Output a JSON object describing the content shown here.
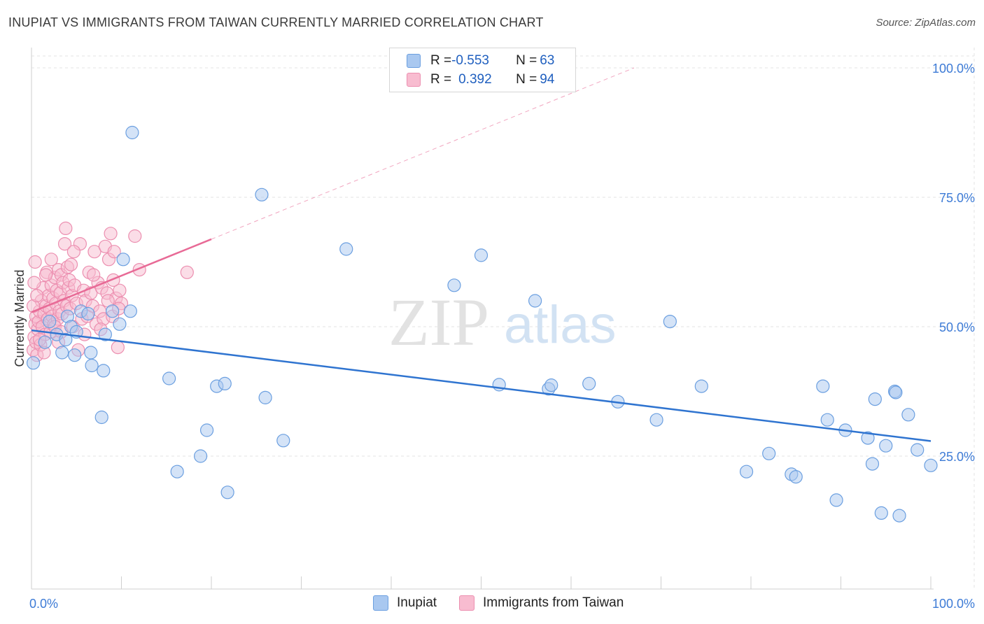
{
  "title": "INUPIAT VS IMMIGRANTS FROM TAIWAN CURRENTLY MARRIED CORRELATION CHART",
  "source": "Source: ZipAtlas.com",
  "watermark": {
    "zip": "ZIP",
    "atlas": "atlas"
  },
  "legend": {
    "rows": [
      {
        "r_label": "R = ",
        "r_value": "-0.553",
        "n_label": "N = ",
        "n_value": "63",
        "color": "#a9c8f0",
        "stroke": "#6c9fe0"
      },
      {
        "r_label": "R = ",
        "r_value": "0.392",
        "n_label": "N = ",
        "n_value": "94",
        "color": "#f8bcd0",
        "stroke": "#ec8fb0"
      }
    ]
  },
  "bottom_legend": [
    "Inupiat",
    "Immigrants from Taiwan"
  ],
  "colors": {
    "blue": "#a9c8f0",
    "blue_stroke": "#6b9fe0",
    "blue_line": "#2f74d0",
    "pink": "#f8bcd0",
    "pink_stroke": "#ec8fb0",
    "pink_line": "#e86a96",
    "axis_text": "#3d7bd6",
    "grid": "#e3e3e3"
  },
  "chart_data": {
    "type": "scatter",
    "title": "INUPIAT VS IMMIGRANTS FROM TAIWAN CURRENTLY MARRIED CORRELATION CHART",
    "xlabel": "",
    "ylabel": "Currently Married",
    "xlim": [
      0,
      100
    ],
    "ylim": [
      0,
      104
    ],
    "x_tick_labels": [
      "0.0%",
      "100.0%"
    ],
    "y_ticks": [
      25,
      50,
      75,
      100
    ],
    "y_tick_labels": [
      "25.0%",
      "50.0%",
      "75.0%",
      "100.0%"
    ],
    "grid": true,
    "series": [
      {
        "name": "Inupiat",
        "points": [
          [
            0.2,
            43.0
          ],
          [
            2.8,
            48.5
          ],
          [
            3.4,
            45.0
          ],
          [
            4.0,
            52.0
          ],
          [
            4.4,
            50.0
          ],
          [
            4.8,
            44.5
          ],
          [
            5.5,
            53.0
          ],
          [
            6.3,
            52.5
          ],
          [
            6.6,
            45.0
          ],
          [
            6.7,
            42.5
          ],
          [
            7.8,
            32.5
          ],
          [
            8.0,
            41.5
          ],
          [
            8.2,
            48.5
          ],
          [
            9.0,
            53.0
          ],
          [
            9.8,
            50.5
          ],
          [
            10.2,
            63.0
          ],
          [
            11.0,
            53.0
          ],
          [
            11.2,
            87.5
          ],
          [
            15.3,
            40.0
          ],
          [
            16.2,
            22.0
          ],
          [
            18.8,
            25.0
          ],
          [
            19.5,
            30.0
          ],
          [
            20.6,
            38.5
          ],
          [
            21.5,
            39.0
          ],
          [
            21.8,
            18.0
          ],
          [
            25.6,
            75.5
          ],
          [
            26.0,
            36.3
          ],
          [
            28.0,
            28.0
          ],
          [
            35.0,
            65.0
          ],
          [
            47.0,
            58.0
          ],
          [
            50.0,
            63.8
          ],
          [
            52.0,
            38.8
          ],
          [
            56.0,
            55.0
          ],
          [
            57.5,
            38.0
          ],
          [
            57.8,
            38.7
          ],
          [
            62.0,
            39.0
          ],
          [
            65.2,
            35.5
          ],
          [
            69.5,
            32.0
          ],
          [
            71.0,
            51.0
          ],
          [
            74.5,
            38.5
          ],
          [
            79.5,
            22.0
          ],
          [
            82.0,
            25.5
          ],
          [
            84.5,
            21.5
          ],
          [
            85.0,
            21.0
          ],
          [
            88.0,
            38.5
          ],
          [
            88.5,
            32.0
          ],
          [
            89.5,
            16.5
          ],
          [
            90.5,
            30.0
          ],
          [
            93.0,
            28.5
          ],
          [
            93.5,
            23.5
          ],
          [
            93.8,
            36.0
          ],
          [
            94.5,
            14.0
          ],
          [
            95.0,
            27.0
          ],
          [
            96.0,
            37.5
          ],
          [
            96.1,
            37.3
          ],
          [
            96.5,
            13.5
          ],
          [
            97.5,
            33.0
          ],
          [
            98.5,
            26.2
          ],
          [
            100.0,
            23.2
          ],
          [
            1.5,
            47.0
          ],
          [
            5.0,
            49.0
          ],
          [
            2.0,
            51.0
          ],
          [
            3.8,
            47.5
          ]
        ],
        "trend": {
          "x": [
            0,
            100
          ],
          "y": [
            49.3,
            27.9
          ]
        }
      },
      {
        "name": "Immigrants from Taiwan",
        "points": [
          [
            0.2,
            45.5
          ],
          [
            0.3,
            48.0
          ],
          [
            0.4,
            50.5
          ],
          [
            0.5,
            47.0
          ],
          [
            0.5,
            52.0
          ],
          [
            0.6,
            44.5
          ],
          [
            0.7,
            49.5
          ],
          [
            0.8,
            51.0
          ],
          [
            0.9,
            53.0
          ],
          [
            1.0,
            46.5
          ],
          [
            1.1,
            55.0
          ],
          [
            1.2,
            50.0
          ],
          [
            1.3,
            57.5
          ],
          [
            1.4,
            52.5
          ],
          [
            1.5,
            48.5
          ],
          [
            1.6,
            54.0
          ],
          [
            1.7,
            60.5
          ],
          [
            1.8,
            51.5
          ],
          [
            1.9,
            56.0
          ],
          [
            2.0,
            53.5
          ],
          [
            2.1,
            49.0
          ],
          [
            2.2,
            58.0
          ],
          [
            2.3,
            52.0
          ],
          [
            2.4,
            55.5
          ],
          [
            2.5,
            50.5
          ],
          [
            2.6,
            59.5
          ],
          [
            2.7,
            54.5
          ],
          [
            2.8,
            57.0
          ],
          [
            2.9,
            51.5
          ],
          [
            3.0,
            61.0
          ],
          [
            3.1,
            53.0
          ],
          [
            3.2,
            56.5
          ],
          [
            3.3,
            60.0
          ],
          [
            3.4,
            52.5
          ],
          [
            3.5,
            58.5
          ],
          [
            3.6,
            55.0
          ],
          [
            3.7,
            66.0
          ],
          [
            3.8,
            69.0
          ],
          [
            3.9,
            54.0
          ],
          [
            4.0,
            61.5
          ],
          [
            4.1,
            57.5
          ],
          [
            4.2,
            59.0
          ],
          [
            4.3,
            53.5
          ],
          [
            4.4,
            62.0
          ],
          [
            4.5,
            56.0
          ],
          [
            4.6,
            50.0
          ],
          [
            4.8,
            58.0
          ],
          [
            5.0,
            54.5
          ],
          [
            5.2,
            45.5
          ],
          [
            5.4,
            66.0
          ],
          [
            5.6,
            51.5
          ],
          [
            5.8,
            57.0
          ],
          [
            6.0,
            55.0
          ],
          [
            6.2,
            52.0
          ],
          [
            6.4,
            60.5
          ],
          [
            6.6,
            56.5
          ],
          [
            6.8,
            54.0
          ],
          [
            7.0,
            64.5
          ],
          [
            7.2,
            50.5
          ],
          [
            7.4,
            58.5
          ],
          [
            7.6,
            53.0
          ],
          [
            7.8,
            57.5
          ],
          [
            8.0,
            51.5
          ],
          [
            8.2,
            65.5
          ],
          [
            8.4,
            56.5
          ],
          [
            8.6,
            63.0
          ],
          [
            8.8,
            68.0
          ],
          [
            9.0,
            52.0
          ],
          [
            9.2,
            64.5
          ],
          [
            9.4,
            55.5
          ],
          [
            9.6,
            46.0
          ],
          [
            9.8,
            57.0
          ],
          [
            10.0,
            54.5
          ],
          [
            11.5,
            67.5
          ],
          [
            12.0,
            61.0
          ],
          [
            17.3,
            60.5
          ],
          [
            0.2,
            54.0
          ],
          [
            0.3,
            58.5
          ],
          [
            0.4,
            62.5
          ],
          [
            0.9,
            47.5
          ],
          [
            1.4,
            45.0
          ],
          [
            2.6,
            50.0
          ],
          [
            3.3,
            49.0
          ],
          [
            4.7,
            64.5
          ],
          [
            5.9,
            48.5
          ],
          [
            6.9,
            60.0
          ],
          [
            7.7,
            49.5
          ],
          [
            8.5,
            55.0
          ],
          [
            9.1,
            59.0
          ],
          [
            9.7,
            53.5
          ],
          [
            0.6,
            56.0
          ],
          [
            1.6,
            60.0
          ],
          [
            2.2,
            63.0
          ],
          [
            3.0,
            47.0
          ]
        ],
        "trend": {
          "x": [
            0,
            20
          ],
          "y": [
            52.8,
            66.9
          ]
        },
        "trend_extension": {
          "x": [
            20,
            67
          ],
          "y": [
            66.9,
            100
          ]
        }
      }
    ]
  }
}
